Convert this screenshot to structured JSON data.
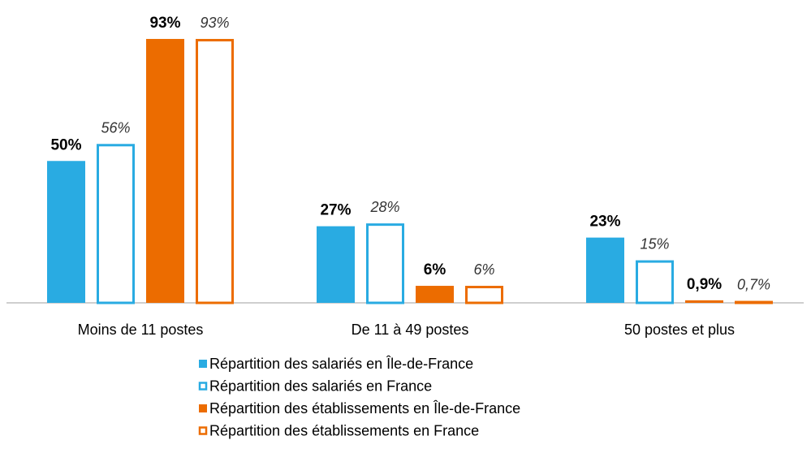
{
  "chart_data": {
    "type": "bar",
    "categories": [
      "Moins de 11 postes",
      "De 11 à 49 postes",
      "50 postes et plus"
    ],
    "series": [
      {
        "name": "Répartition des salariés en Île-de-France",
        "color": "#29abe2",
        "filled": true,
        "values": [
          50,
          27,
          23
        ],
        "value_labels": [
          "50%",
          "27%",
          "23%"
        ]
      },
      {
        "name": "Répartition des salariés en France",
        "color": "#29abe2",
        "filled": false,
        "values": [
          56,
          28,
          15
        ],
        "value_labels": [
          "56%",
          "28%",
          "15%"
        ]
      },
      {
        "name": "Répartition des établissements en Île-de-France",
        "color": "#ec6c00",
        "filled": true,
        "values": [
          93,
          6,
          0.9
        ],
        "value_labels": [
          "93%",
          "6%",
          "0,9%"
        ]
      },
      {
        "name": "Répartition des établissements en France",
        "color": "#ec6c00",
        "filled": false,
        "values": [
          93,
          6,
          0.7
        ],
        "value_labels": [
          "93%",
          "6%",
          "0,7%"
        ]
      }
    ]
  }
}
